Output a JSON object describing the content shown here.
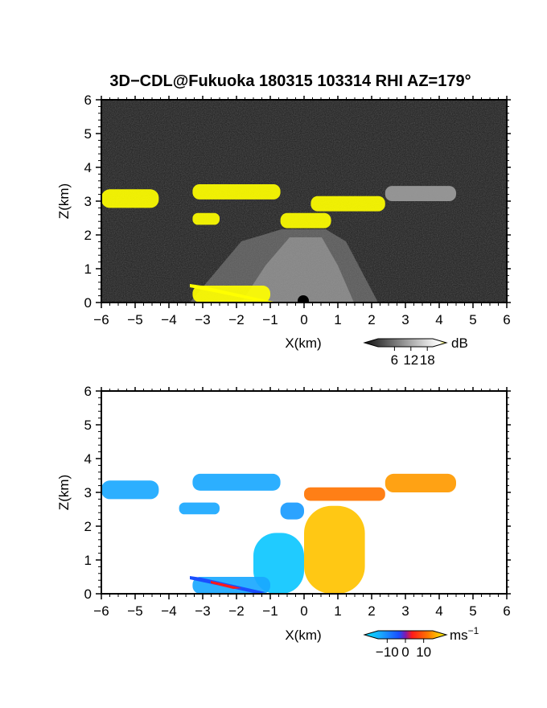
{
  "chart_data": [
    {
      "type": "heatmap",
      "title": "3D−CDL@Fukuoka 180315 103314 RHI AZ=179°",
      "xlabel": "X(km)",
      "ylabel": "Z(km)",
      "xlim": [
        -6,
        6
      ],
      "ylim": [
        0,
        6
      ],
      "xticks": [
        "−6",
        "−5",
        "−4",
        "−3",
        "−2",
        "−1",
        "0",
        "1",
        "2",
        "3",
        "4",
        "5",
        "6"
      ],
      "yticks": [
        "0",
        "1",
        "2",
        "3",
        "4",
        "5",
        "6"
      ],
      "colorbar": {
        "unit": "dB",
        "ticks": [
          "6",
          "12",
          "18"
        ],
        "range": [
          0,
          20
        ]
      },
      "background": "#1a1a1a",
      "regions": [
        {
          "x": [
            -6.0,
            -4.3
          ],
          "z": [
            2.8,
            3.35
          ],
          "value": 20
        },
        {
          "x": [
            -3.3,
            -2.5
          ],
          "z": [
            2.3,
            2.65
          ],
          "value": 20
        },
        {
          "x": [
            -3.3,
            -0.7
          ],
          "z": [
            3.05,
            3.5
          ],
          "value": 20
        },
        {
          "x": [
            -0.7,
            0.8
          ],
          "z": [
            2.2,
            2.65
          ],
          "value": 20
        },
        {
          "x": [
            0.2,
            2.4
          ],
          "z": [
            2.7,
            3.15
          ],
          "value": 20
        },
        {
          "x": [
            2.4,
            4.5
          ],
          "z": [
            3.0,
            3.45
          ],
          "value": 12
        },
        {
          "x": [
            -3.3,
            -1.0
          ],
          "z": [
            0.0,
            0.5
          ],
          "value": 20
        }
      ]
    },
    {
      "type": "heatmap",
      "title": "",
      "xlabel": "X(km)",
      "ylabel": "Z(km)",
      "xlim": [
        -6,
        6
      ],
      "ylim": [
        0,
        6
      ],
      "xticks": [
        "−6",
        "−5",
        "−4",
        "−3",
        "−2",
        "−1",
        "0",
        "1",
        "2",
        "3",
        "4",
        "5",
        "6"
      ],
      "yticks": [
        "0",
        "1",
        "2",
        "3",
        "4",
        "5",
        "6"
      ],
      "colorbar": {
        "unit": "ms",
        "unit_exp": "−1",
        "ticks": [
          "−10",
          "0",
          "10"
        ],
        "range": [
          -15,
          15
        ]
      },
      "background": "#ffffff",
      "regions": [
        {
          "x": [
            -6.0,
            -4.3
          ],
          "z": [
            2.8,
            3.35
          ],
          "value": -9
        },
        {
          "x": [
            -3.7,
            -2.5
          ],
          "z": [
            2.35,
            2.7
          ],
          "value": -9
        },
        {
          "x": [
            -3.3,
            -0.7
          ],
          "z": [
            3.05,
            3.55
          ],
          "value": -9
        },
        {
          "x": [
            -0.7,
            0.0
          ],
          "z": [
            2.2,
            2.7
          ],
          "value": -8
        },
        {
          "x": [
            0.0,
            2.4
          ],
          "z": [
            2.75,
            3.15
          ],
          "value": 8
        },
        {
          "x": [
            2.4,
            4.5
          ],
          "z": [
            3.0,
            3.55
          ],
          "value": 10
        },
        {
          "x": [
            -1.5,
            0.0
          ],
          "z": [
            0.0,
            1.8
          ],
          "value": -12
        },
        {
          "x": [
            0.0,
            1.8
          ],
          "z": [
            0.0,
            2.6
          ],
          "value": 12
        },
        {
          "x": [
            -3.3,
            -1.0
          ],
          "z": [
            0.0,
            0.5
          ],
          "value": -9
        }
      ]
    }
  ]
}
